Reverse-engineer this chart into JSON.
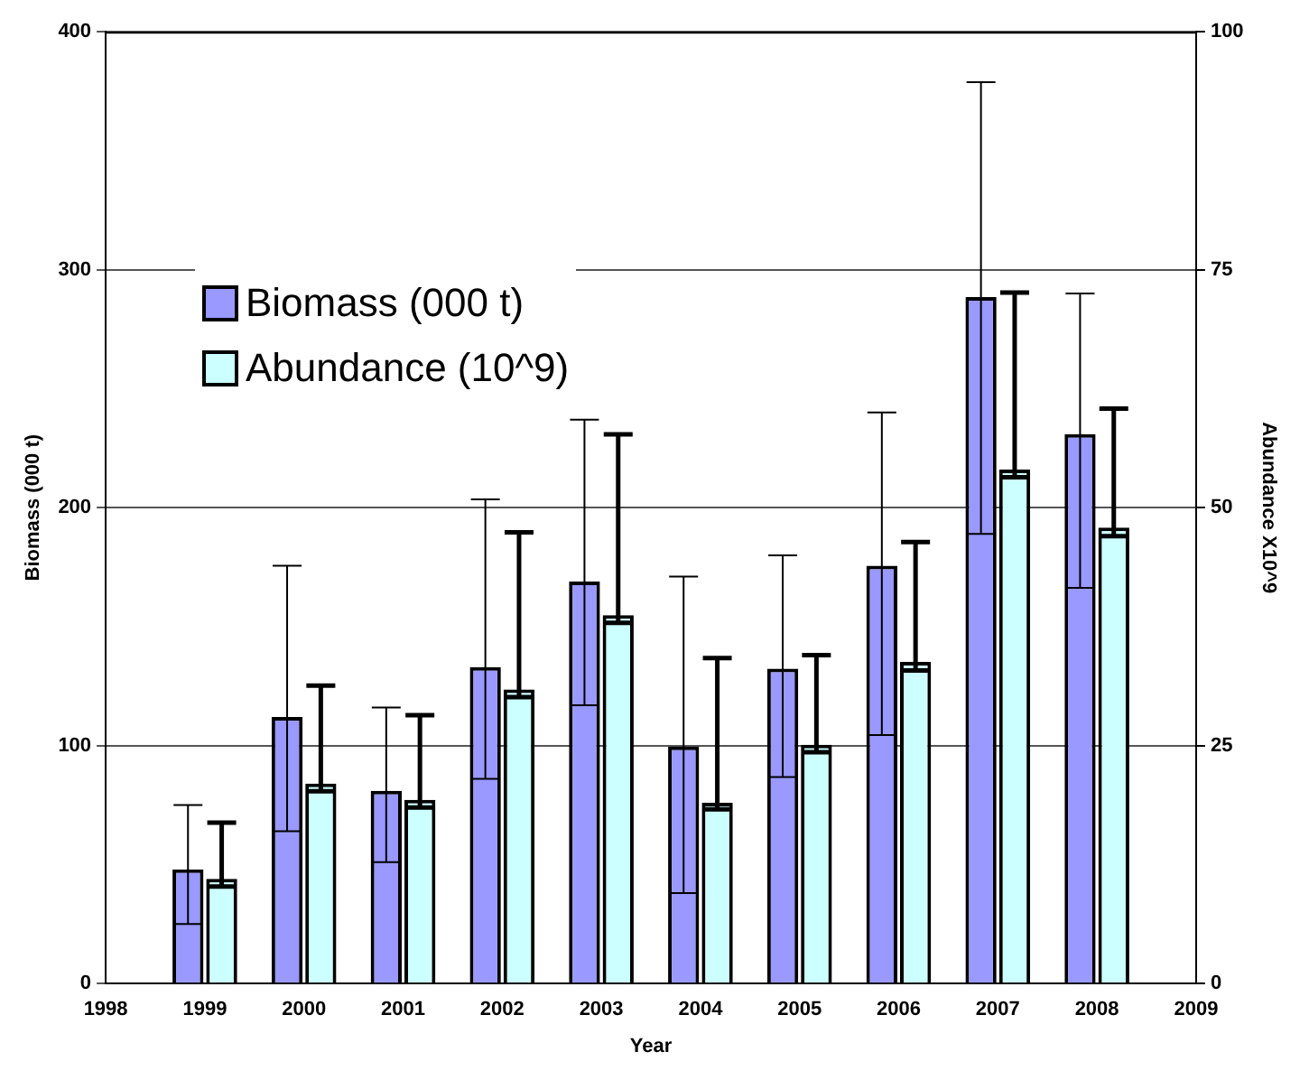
{
  "chart_data": {
    "type": "bar",
    "xlabel": "Year",
    "ylabel": "Biomass (000 t)",
    "y2label": "Abundance X10^9",
    "x": [
      1999,
      2000,
      2001,
      2002,
      2003,
      2004,
      2005,
      2006,
      2007,
      2008
    ],
    "series": [
      {
        "name": "Biomass (000 t)",
        "color": "#9999ff",
        "values": [
          48,
          112,
          81,
          133,
          169,
          99.6,
          132.3,
          175.6,
          288.5,
          230.9
        ],
        "errors": [
          [
            25,
            75
          ],
          [
            64,
            175.6
          ],
          [
            51,
            116
          ],
          [
            86,
            203.5
          ],
          [
            117,
            237
          ],
          [
            38,
            171
          ],
          [
            86.8,
            180
          ],
          [
            104.4,
            240
          ],
          [
            189,
            378.8
          ],
          [
            166.3,
            290
          ]
        ]
      },
      {
        "name": "Abundance (10^9)",
        "color": "#ccffff",
        "axis": "y2",
        "values": [
          11,
          21,
          19.3,
          30.9,
          38.7,
          19,
          25.1,
          33.8,
          54,
          47.9
        ],
        "errors": [
          [
            10.2,
            16.9
          ],
          [
            20.2,
            31.3
          ],
          [
            18.5,
            28.2
          ],
          [
            30.1,
            47.4
          ],
          [
            37.9,
            57.7
          ],
          [
            18.3,
            34.2
          ],
          [
            24.3,
            34.5
          ],
          [
            32.9,
            46.4
          ],
          [
            53.2,
            72.6
          ],
          [
            47,
            60.4
          ]
        ]
      }
    ],
    "xlim": [
      1998,
      2009
    ],
    "xticks": [
      1998,
      1999,
      2000,
      2001,
      2002,
      2003,
      2004,
      2005,
      2006,
      2007,
      2008,
      2009
    ],
    "ylim": [
      0,
      400
    ],
    "yticks": [
      0,
      100,
      200,
      300,
      400
    ],
    "y2lim": [
      0,
      100
    ],
    "y2ticks": [
      0,
      25,
      50,
      75,
      100
    ],
    "grid": "y",
    "legend": "left"
  }
}
